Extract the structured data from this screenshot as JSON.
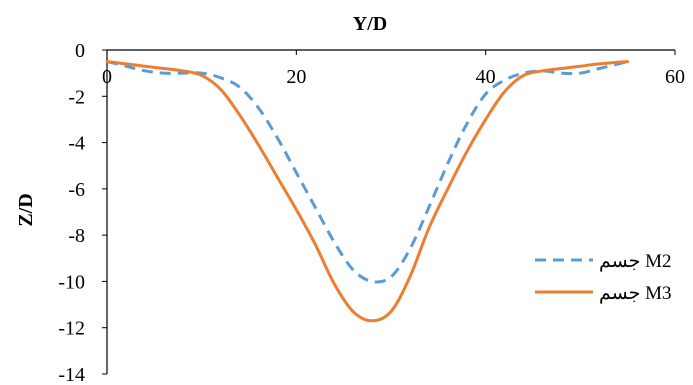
{
  "chart_data": {
    "type": "line",
    "title": "",
    "xlabel": "Y/D",
    "ylabel": "Z/D",
    "xlim": [
      0,
      60
    ],
    "ylim": [
      -14,
      0
    ],
    "x_ticks": [
      "0",
      "20",
      "40",
      "60"
    ],
    "y_ticks": [
      "0",
      "-2",
      "-4",
      "-6",
      "-8",
      "-10",
      "-12",
      "-14"
    ],
    "x_axis_position": "top",
    "grid": false,
    "legend_position": "right",
    "series": [
      {
        "name": "جسم M2",
        "color": "#5B9BD5",
        "style": "dashed",
        "x": [
          0,
          2,
          4,
          6,
          8,
          10,
          12,
          14,
          16,
          18,
          20,
          22,
          24,
          26,
          28,
          30,
          32,
          34,
          36,
          38,
          40,
          42,
          44,
          46,
          48,
          50,
          52,
          55
        ],
        "y": [
          -0.5,
          -0.7,
          -0.9,
          -1.0,
          -1.0,
          -1.0,
          -1.2,
          -1.6,
          -2.5,
          -3.8,
          -5.3,
          -6.8,
          -8.3,
          -9.5,
          -10.0,
          -9.8,
          -8.6,
          -6.8,
          -4.9,
          -3.2,
          -1.9,
          -1.3,
          -1.0,
          -0.9,
          -1.0,
          -1.0,
          -0.8,
          -0.5
        ]
      },
      {
        "name": "جسم M3",
        "color": "#ED7D31",
        "style": "solid",
        "x": [
          0,
          2,
          4,
          6,
          8,
          10,
          12,
          14,
          16,
          18,
          20,
          22,
          24,
          26,
          28,
          30,
          32,
          34,
          36,
          38,
          40,
          42,
          44,
          46,
          48,
          50,
          52,
          55
        ],
        "y": [
          -0.5,
          -0.6,
          -0.7,
          -0.8,
          -0.9,
          -1.1,
          -1.7,
          -2.8,
          -4.1,
          -5.5,
          -6.9,
          -8.4,
          -10.1,
          -11.3,
          -11.7,
          -11.3,
          -9.8,
          -7.7,
          -6.0,
          -4.4,
          -3.0,
          -1.8,
          -1.1,
          -0.9,
          -0.8,
          -0.7,
          -0.6,
          -0.5
        ]
      }
    ]
  }
}
